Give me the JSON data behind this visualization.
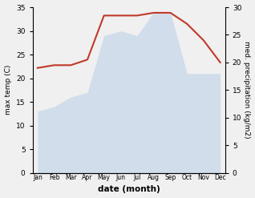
{
  "months": [
    "Jan",
    "Feb",
    "Mar",
    "Apr",
    "May",
    "Jun",
    "Jul",
    "Aug",
    "Sep",
    "Oct",
    "Nov",
    "Dec"
  ],
  "temp": [
    13,
    14,
    16,
    17,
    29,
    30,
    29,
    34,
    34,
    21,
    21,
    21
  ],
  "precip": [
    19.0,
    19.5,
    19.5,
    20.5,
    28.5,
    28.5,
    28.5,
    29.0,
    29.0,
    27.0,
    24.0,
    20.0
  ],
  "temp_color": "#b8cfe8",
  "precip_color": "#c0392b",
  "left_ylabel": "max temp (C)",
  "right_ylabel": "med. precipitation (kg/m2)",
  "xlabel": "date (month)",
  "ylim_left": [
    0,
    35
  ],
  "ylim_right": [
    0,
    30
  ],
  "yticks_left": [
    0,
    5,
    10,
    15,
    20,
    25,
    30,
    35
  ],
  "yticks_right": [
    0,
    5,
    10,
    15,
    20,
    25,
    30
  ],
  "figsize": [
    3.18,
    2.47
  ],
  "dpi": 100
}
